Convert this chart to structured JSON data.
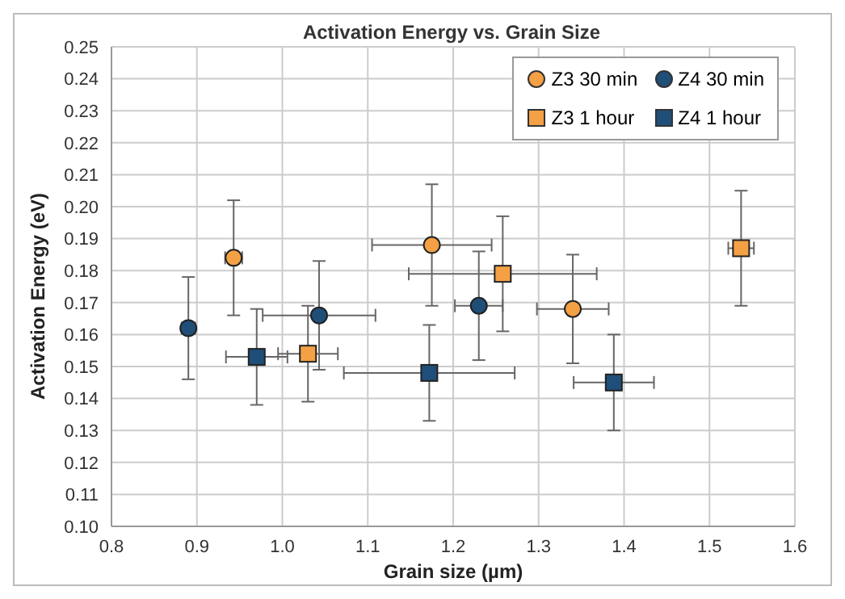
{
  "chart_data": {
    "type": "scatter",
    "title": "Activation Energy vs. Grain Size",
    "xlabel": "Grain size (µm)",
    "ylabel": "Activation Energy (eV)",
    "xlim": [
      0.8,
      1.6
    ],
    "xticks": [
      {
        "value": 0.8,
        "label": "0.8"
      },
      {
        "value": 0.9,
        "label": "0.9"
      },
      {
        "value": 1.0,
        "label": "1.0"
      },
      {
        "value": 1.1,
        "label": "1.1"
      },
      {
        "value": 1.2,
        "label": "1.2"
      },
      {
        "value": 1.3,
        "label": "1.3"
      },
      {
        "value": 1.4,
        "label": "1.4"
      },
      {
        "value": 1.5,
        "label": "1.5"
      },
      {
        "value": 1.6,
        "label": "1.6"
      }
    ],
    "ylim": [
      0.1,
      0.25
    ],
    "yticks": [
      {
        "value": 0.1,
        "label": "0.10"
      },
      {
        "value": 0.11,
        "label": "0.11"
      },
      {
        "value": 0.12,
        "label": "0.12"
      },
      {
        "value": 0.13,
        "label": "0.13"
      },
      {
        "value": 0.14,
        "label": "0.14"
      },
      {
        "value": 0.15,
        "label": "0.15"
      },
      {
        "value": 0.16,
        "label": "0.16"
      },
      {
        "value": 0.17,
        "label": "0.17"
      },
      {
        "value": 0.18,
        "label": "0.18"
      },
      {
        "value": 0.19,
        "label": "0.19"
      },
      {
        "value": 0.2,
        "label": "0.20"
      },
      {
        "value": 0.21,
        "label": "0.21"
      },
      {
        "value": 0.22,
        "label": "0.22"
      },
      {
        "value": 0.23,
        "label": "0.23"
      },
      {
        "value": 0.24,
        "label": "0.24"
      },
      {
        "value": 0.25,
        "label": "0.25"
      }
    ],
    "grid": true,
    "legend": "top right",
    "series": [
      {
        "name": "Z3 30 min",
        "color": "#f4a045",
        "marker": "circle",
        "x": [
          0.943,
          1.175,
          1.34
        ],
        "values": [
          0.184,
          0.188,
          0.168
        ],
        "errors": [
          0.018,
          0.019,
          0.017
        ],
        "xerrors": [
          0.01,
          0.07,
          0.042
        ]
      },
      {
        "name": "Z4 30 min",
        "color": "#1f4e79",
        "marker": "circle",
        "x": [
          0.89,
          1.043,
          1.23
        ],
        "values": [
          0.162,
          0.166,
          0.169
        ],
        "errors": [
          0.016,
          0.017,
          0.017
        ],
        "xerrors": [
          0.008,
          0.066,
          0.028
        ]
      },
      {
        "name": "Z3 1 hour",
        "color": "#f4a045",
        "marker": "square",
        "x": [
          1.03,
          1.258,
          1.537
        ],
        "values": [
          0.154,
          0.179,
          0.187
        ],
        "errors": [
          0.015,
          0.018,
          0.018
        ],
        "xerrors": [
          0.035,
          0.11,
          0.015
        ]
      },
      {
        "name": "Z4 1 hour",
        "color": "#1f4e79",
        "marker": "square",
        "x": [
          0.97,
          1.172,
          1.388
        ],
        "values": [
          0.153,
          0.148,
          0.145
        ],
        "errors": [
          0.015,
          0.015,
          0.015
        ],
        "xerrors": [
          0.036,
          0.1,
          0.047
        ]
      }
    ]
  }
}
